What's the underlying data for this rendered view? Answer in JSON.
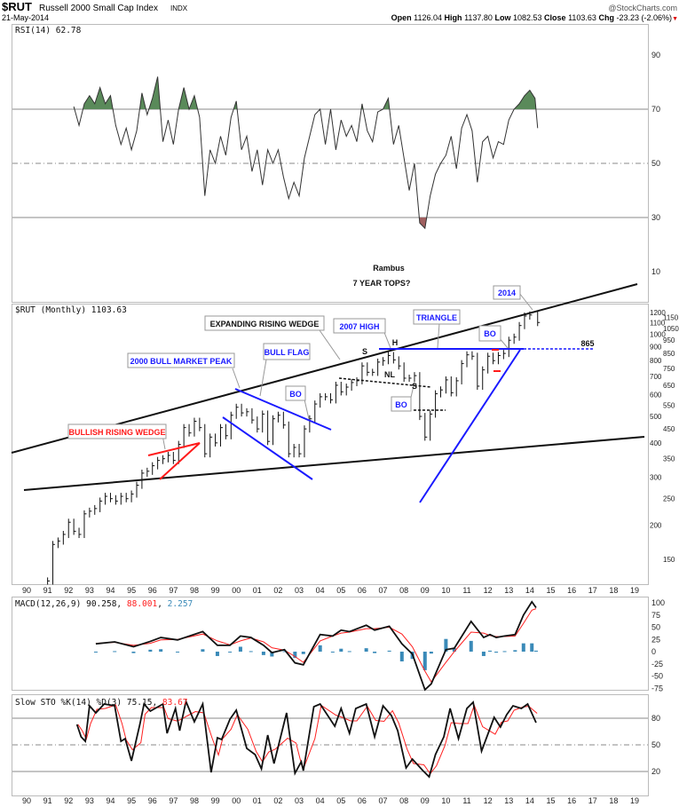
{
  "header": {
    "symbol": "$RUT",
    "name": "Russell 2000 Small Cap Index",
    "exchange": "INDX",
    "date": "21-May-2014",
    "source": "@StockCharts.com",
    "open_label": "Open",
    "open": "1126.04",
    "high_label": "High",
    "high": "1137.80",
    "low_label": "Low",
    "low": "1082.53",
    "close_label": "Close",
    "close": "1103.63",
    "chg_label": "Chg",
    "chg": "-23.23 (-2.06%)",
    "down_arrow": "▼"
  },
  "colors": {
    "rsi_fill_over": "#5a8a5a",
    "rsi_fill_under": "#a06060",
    "signal": "#ff2020",
    "histogram": "#3a8ab8",
    "blue_line": "#1a1aff",
    "red_line": "#ff1a1a"
  },
  "chart_data": [
    {
      "type": "line",
      "title": "RSI(14) 62.78",
      "ylim": [
        0,
        100
      ],
      "ticks": [
        "90",
        "70",
        "50",
        "30",
        "10"
      ],
      "tick_values": [
        90,
        70,
        50,
        30,
        10
      ],
      "points": [
        [
          1992.25,
          71
        ],
        [
          1992.5,
          64
        ],
        [
          1992.75,
          72
        ],
        [
          1993,
          75
        ],
        [
          1993.25,
          72
        ],
        [
          1993.5,
          78
        ],
        [
          1993.75,
          72
        ],
        [
          1994,
          75
        ],
        [
          1994.25,
          64
        ],
        [
          1994.5,
          57
        ],
        [
          1994.75,
          63
        ],
        [
          1995,
          55
        ],
        [
          1995.25,
          62
        ],
        [
          1995.5,
          76
        ],
        [
          1995.75,
          68
        ],
        [
          1996,
          74
        ],
        [
          1996.25,
          82
        ],
        [
          1996.5,
          58
        ],
        [
          1996.75,
          66
        ],
        [
          1997,
          57
        ],
        [
          1997.25,
          70
        ],
        [
          1997.5,
          78
        ],
        [
          1997.75,
          70
        ],
        [
          1998,
          75
        ],
        [
          1998.25,
          67
        ],
        [
          1998.5,
          38
        ],
        [
          1998.75,
          55
        ],
        [
          1999,
          50
        ],
        [
          1999.25,
          60
        ],
        [
          1999.5,
          53
        ],
        [
          1999.75,
          67
        ],
        [
          2000,
          73
        ],
        [
          2000.25,
          55
        ],
        [
          2000.5,
          60
        ],
        [
          2000.75,
          47
        ],
        [
          2001,
          55
        ],
        [
          2001.25,
          42
        ],
        [
          2001.5,
          55
        ],
        [
          2001.75,
          50
        ],
        [
          2002,
          55
        ],
        [
          2002.25,
          45
        ],
        [
          2002.5,
          37
        ],
        [
          2002.75,
          43
        ],
        [
          2003,
          38
        ],
        [
          2003.25,
          52
        ],
        [
          2003.5,
          60
        ],
        [
          2003.75,
          68
        ],
        [
          2004,
          70
        ],
        [
          2004.25,
          57
        ],
        [
          2004.5,
          70
        ],
        [
          2004.75,
          55
        ],
        [
          2005,
          66
        ],
        [
          2005.25,
          60
        ],
        [
          2005.5,
          64
        ],
        [
          2005.75,
          58
        ],
        [
          2006,
          72
        ],
        [
          2006.25,
          62
        ],
        [
          2006.5,
          58
        ],
        [
          2006.75,
          69
        ],
        [
          2007,
          70
        ],
        [
          2007.25,
          74
        ],
        [
          2007.5,
          57
        ],
        [
          2007.75,
          64
        ],
        [
          2008,
          52
        ],
        [
          2008.25,
          40
        ],
        [
          2008.5,
          50
        ],
        [
          2008.75,
          28
        ],
        [
          2009,
          26
        ],
        [
          2009.25,
          38
        ],
        [
          2009.5,
          46
        ],
        [
          2009.75,
          50
        ],
        [
          2010,
          53
        ],
        [
          2010.25,
          60
        ],
        [
          2010.5,
          48
        ],
        [
          2010.75,
          63
        ],
        [
          2011,
          68
        ],
        [
          2011.25,
          62
        ],
        [
          2011.5,
          43
        ],
        [
          2011.75,
          58
        ],
        [
          2012,
          60
        ],
        [
          2012.25,
          52
        ],
        [
          2012.5,
          58
        ],
        [
          2012.75,
          57
        ],
        [
          2013,
          66
        ],
        [
          2013.25,
          70
        ],
        [
          2013.5,
          72
        ],
        [
          2013.75,
          75
        ],
        [
          2014,
          77
        ],
        [
          2014.25,
          74
        ],
        [
          2014.375,
          63
        ]
      ]
    },
    {
      "type": "bar",
      "title": "$RUT (Monthly) 1103.63",
      "scale": "log",
      "ylim": [
        120,
        1300
      ],
      "ticks": [
        "1200",
        "1150",
        "1100",
        "1050",
        "1000",
        "950",
        "900",
        "850",
        "800",
        "750",
        "700",
        "650",
        "600",
        "550",
        "500",
        "450",
        "400",
        "350",
        "300",
        "250",
        "200",
        "150"
      ],
      "tick_values": [
        1200,
        1150,
        1100,
        1050,
        1000,
        950,
        900,
        850,
        800,
        750,
        700,
        650,
        600,
        550,
        500,
        450,
        400,
        350,
        300,
        250,
        200,
        150
      ],
      "points": [
        [
          1991,
          125
        ],
        [
          1991.25,
          170
        ],
        [
          1991.5,
          175
        ],
        [
          1991.75,
          185
        ],
        [
          1992,
          205
        ],
        [
          1992.25,
          190
        ],
        [
          1992.5,
          185
        ],
        [
          1992.75,
          220
        ],
        [
          1993,
          225
        ],
        [
          1993.25,
          230
        ],
        [
          1993.5,
          245
        ],
        [
          1993.75,
          255
        ],
        [
          1994,
          250
        ],
        [
          1994.25,
          245
        ],
        [
          1994.5,
          255
        ],
        [
          1994.75,
          250
        ],
        [
          1995,
          260
        ],
        [
          1995.25,
          280
        ],
        [
          1995.5,
          310
        ],
        [
          1995.75,
          315
        ],
        [
          1996,
          330
        ],
        [
          1996.25,
          345
        ],
        [
          1996.5,
          350
        ],
        [
          1996.75,
          360
        ],
        [
          1997,
          345
        ],
        [
          1997.25,
          395
        ],
        [
          1997.5,
          455
        ],
        [
          1997.75,
          435
        ],
        [
          1998,
          480
        ],
        [
          1998.25,
          455
        ],
        [
          1998.5,
          365
        ],
        [
          1998.75,
          420
        ],
        [
          1999,
          400
        ],
        [
          1999.25,
          455
        ],
        [
          1999.5,
          425
        ],
        [
          1999.75,
          505
        ],
        [
          2000,
          540
        ],
        [
          2000.25,
          515
        ],
        [
          2000.5,
          520
        ],
        [
          2000.75,
          485
        ],
        [
          2001,
          450
        ],
        [
          2001.25,
          510
        ],
        [
          2001.5,
          405
        ],
        [
          2001.75,
          490
        ],
        [
          2002,
          505
        ],
        [
          2002.25,
          465
        ],
        [
          2002.5,
          365
        ],
        [
          2002.75,
          385
        ],
        [
          2003,
          365
        ],
        [
          2003.25,
          450
        ],
        [
          2003.5,
          490
        ],
        [
          2003.75,
          555
        ],
        [
          2004,
          590
        ],
        [
          2004.25,
          590
        ],
        [
          2004.5,
          575
        ],
        [
          2004.75,
          650
        ],
        [
          2005,
          615
        ],
        [
          2005.25,
          640
        ],
        [
          2005.5,
          665
        ],
        [
          2005.75,
          675
        ],
        [
          2006,
          765
        ],
        [
          2006.25,
          725
        ],
        [
          2006.5,
          725
        ],
        [
          2006.75,
          790
        ],
        [
          2007,
          800
        ],
        [
          2007.25,
          835
        ],
        [
          2007.5,
          805
        ],
        [
          2007.75,
          765
        ],
        [
          2008,
          690
        ],
        [
          2008.25,
          690
        ],
        [
          2008.5,
          705
        ],
        [
          2008.75,
          500
        ],
        [
          2009,
          420
        ],
        [
          2009.25,
          510
        ],
        [
          2009.5,
          605
        ],
        [
          2009.75,
          625
        ],
        [
          2010,
          680
        ],
        [
          2010.25,
          610
        ],
        [
          2010.5,
          675
        ],
        [
          2010.75,
          780
        ],
        [
          2011,
          840
        ],
        [
          2011.25,
          830
        ],
        [
          2011.5,
          645
        ],
        [
          2011.75,
          740
        ],
        [
          2012,
          830
        ],
        [
          2012.25,
          800
        ],
        [
          2012.5,
          835
        ],
        [
          2012.75,
          850
        ],
        [
          2013,
          950
        ],
        [
          2013.25,
          975
        ],
        [
          2013.5,
          1075
        ],
        [
          2013.75,
          1165
        ],
        [
          2014,
          1175
        ],
        [
          2014.375,
          1103
        ]
      ]
    },
    {
      "type": "line",
      "title": "MACD(12,26,9)",
      "values_label": {
        "macd": "90.258",
        "signal": "88.001",
        "hist": "2.257"
      },
      "ylim": [
        -85,
        110
      ],
      "ticks": [
        "100",
        "75",
        "50",
        "25",
        "0",
        "-25",
        "-50",
        "-75"
      ],
      "tick_values": [
        100,
        75,
        50,
        25,
        0,
        -25,
        -50,
        -75
      ],
      "x": [
        1993.3,
        1994.2,
        1995.1,
        1995.9,
        1996.4,
        1997.2,
        1998.4,
        1999.1,
        1999.7,
        2000.2,
        2000.7,
        2001.3,
        2001.7,
        2002.3,
        2002.8,
        2003.2,
        2004.0,
        2004.6,
        2005.0,
        2005.4,
        2006.2,
        2006.6,
        2007.3,
        2007.9,
        2008.4,
        2009.0,
        2009.3,
        2010.0,
        2010.4,
        2011.2,
        2011.8,
        2012.1,
        2012.4,
        2012.8,
        2013.3,
        2013.7,
        2014.1,
        2014.3
      ],
      "macd": [
        16,
        20,
        10,
        21,
        29,
        24,
        41,
        13,
        13,
        32,
        29,
        13,
        -2,
        4,
        -23,
        -27,
        35,
        32,
        44,
        41,
        54,
        44,
        52,
        16,
        -5,
        -78,
        -66,
        4,
        7,
        62,
        29,
        35,
        29,
        32,
        35,
        75,
        102,
        90
      ],
      "signal": [
        17,
        19,
        13,
        17,
        24,
        25,
        36,
        22,
        14,
        22,
        28,
        20,
        8,
        3,
        -10,
        -22,
        22,
        32,
        38,
        40,
        47,
        47,
        50,
        36,
        10,
        -40,
        -62,
        -22,
        0,
        40,
        38,
        33,
        31,
        31,
        32,
        58,
        85,
        88
      ]
    },
    {
      "type": "line",
      "title": "Slow STO %K(14) %D(3)",
      "values_label": {
        "k": "75.15",
        "d": "83.67"
      },
      "ylim": [
        0,
        100
      ],
      "ticks": [
        "80",
        "50",
        "20"
      ],
      "tick_values": [
        80,
        50,
        20
      ],
      "points": [
        [
          1992.4,
          73
        ],
        [
          1992.6,
          59
        ],
        [
          1992.8,
          54
        ],
        [
          1993.0,
          94
        ],
        [
          1993.3,
          86
        ],
        [
          1993.7,
          96
        ],
        [
          1994.2,
          94
        ],
        [
          1994.5,
          54
        ],
        [
          1994.7,
          57
        ],
        [
          1995.0,
          32
        ],
        [
          1995.4,
          73
        ],
        [
          1995.6,
          96
        ],
        [
          1995.9,
          88
        ],
        [
          1996.5,
          96
        ],
        [
          1996.7,
          63
        ],
        [
          1997.1,
          91
        ],
        [
          1997.3,
          66
        ],
        [
          1997.6,
          99
        ],
        [
          1998.0,
          76
        ],
        [
          1998.4,
          96
        ],
        [
          1998.8,
          19
        ],
        [
          1999.1,
          58
        ],
        [
          1999.3,
          56
        ],
        [
          1999.7,
          79
        ],
        [
          2000.0,
          89
        ],
        [
          2000.5,
          46
        ],
        [
          2000.9,
          39
        ],
        [
          2001.2,
          23
        ],
        [
          2001.5,
          61
        ],
        [
          2001.8,
          29
        ],
        [
          2002.4,
          86
        ],
        [
          2002.8,
          18
        ],
        [
          2003.1,
          31
        ],
        [
          2003.2,
          21
        ],
        [
          2003.7,
          93
        ],
        [
          2004.0,
          96
        ],
        [
          2004.7,
          71
        ],
        [
          2005.0,
          91
        ],
        [
          2005.4,
          63
        ],
        [
          2005.7,
          91
        ],
        [
          2006.2,
          96
        ],
        [
          2006.6,
          59
        ],
        [
          2007.0,
          94
        ],
        [
          2007.4,
          83
        ],
        [
          2007.7,
          66
        ],
        [
          2008.1,
          24
        ],
        [
          2008.4,
          34
        ],
        [
          2008.9,
          21
        ],
        [
          2009.2,
          14
        ],
        [
          2009.5,
          39
        ],
        [
          2009.9,
          59
        ],
        [
          2010.2,
          91
        ],
        [
          2010.6,
          57
        ],
        [
          2011.0,
          91
        ],
        [
          2011.3,
          98
        ],
        [
          2011.7,
          43
        ],
        [
          2012.3,
          81
        ],
        [
          2012.6,
          70
        ],
        [
          2012.9,
          84
        ],
        [
          2013.2,
          94
        ],
        [
          2013.6,
          91
        ],
        [
          2013.9,
          96
        ],
        [
          2014.3,
          75
        ]
      ]
    }
  ],
  "x_axis": {
    "labels": [
      "90",
      "91",
      "92",
      "93",
      "94",
      "95",
      "96",
      "97",
      "98",
      "99",
      "00",
      "01",
      "02",
      "03",
      "04",
      "05",
      "06",
      "07",
      "08",
      "09",
      "10",
      "11",
      "12",
      "13",
      "14",
      "15",
      "16",
      "17",
      "18",
      "19"
    ],
    "start_year": 1990
  },
  "annotations": {
    "rambus": "Rambus",
    "seven_year_tops": "7 YEAR TOPS?",
    "label_2014": "2014",
    "expanding_wedge": "EXPANDING RISING WEDGE",
    "high_2007": "2007 HIGH",
    "triangle": "TRIANGLE",
    "bull_market_peak": "2000 BULL MARKET PEAK",
    "bull_flag": "BULL FLAG",
    "bullish_wedge": "BULLISH RISING WEDGE",
    "bo": "BO",
    "h": "H",
    "s": "S",
    "nl": "NL",
    "level_865": "865"
  }
}
